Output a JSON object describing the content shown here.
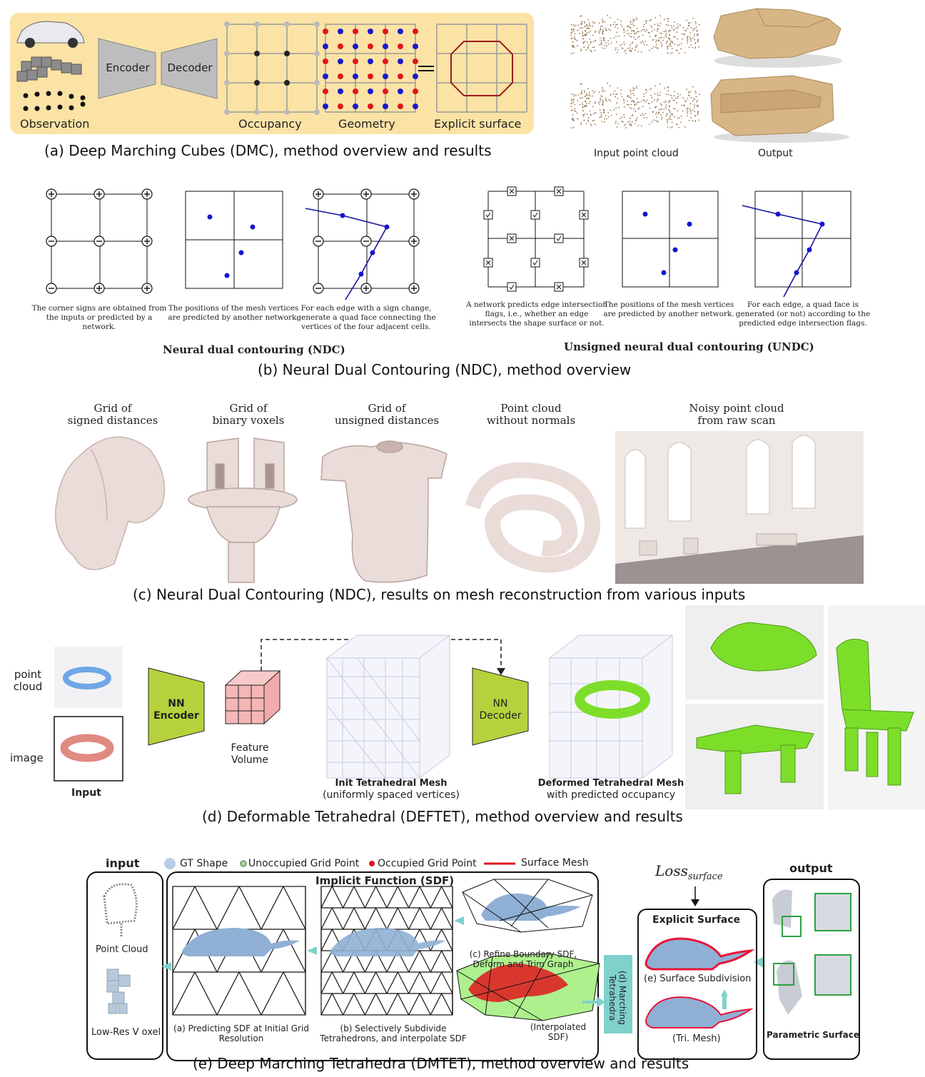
{
  "panel_a": {
    "caption": "(a) Deep Marching Cubes (DMC), method overview and results",
    "encoder": "Encoder",
    "decoder": "Decoder",
    "observation": "Observation",
    "occupancy": "Occupancy",
    "geometry": "Geometry",
    "explicit_surface": "Explicit surface",
    "input_point_cloud": "Input point cloud",
    "output": "Output",
    "colors": {
      "panel_bg": "#fbe3a6",
      "box": "#bdbdbd",
      "red": "#e0161d",
      "blue": "#1a1acc",
      "mesh": "#d8b585"
    }
  },
  "panel_b": {
    "caption": "(b) Neural Dual Contouring (NDC), method overview",
    "ndc_title": "Neural dual contouring (NDC)",
    "undc_title": "Unsigned neural dual contouring (UNDC)",
    "notes": [
      "The corner signs are obtained from the inputs or predicted by a network.",
      "The positions of the mesh vertices are predicted by another network.",
      "For each edge with a sign change, generate a quad face connecting the vertices of the four adjacent cells.",
      "A network predicts edge intersection flags, i.e., whether an edge intersects the shape surface or not.",
      "The positions of the mesh vertices are predicted by another network.",
      "For each edge, a quad face is generated (or not) according to the predicted edge intersection flags."
    ]
  },
  "panel_c": {
    "caption": "(c) Neural Dual Contouring (NDC), results on mesh reconstruction from various inputs",
    "labels": [
      {
        "l1": "Grid of",
        "l2": "signed distances"
      },
      {
        "l1": "Grid of",
        "l2": "binary voxels"
      },
      {
        "l1": "Grid of",
        "l2": "unsigned distances"
      },
      {
        "l1": "Point cloud",
        "l2": "without normals"
      },
      {
        "l1": "Noisy point cloud",
        "l2": "from raw scan"
      }
    ],
    "colors": {
      "mesh": "#eadcd8"
    }
  },
  "panel_d": {
    "caption": "(d) Deformable Tetrahedral (DEFTET), method overview and results",
    "point_cloud": "point cloud",
    "image": "image",
    "input": "Input",
    "nn_encoder": "NN Encoder",
    "nn_decoder": "NN Decoder",
    "feature_volume": "Feature Volume",
    "init_mesh": "Init Tetrahedral Mesh",
    "init_sub": "(uniformly spaced vertices)",
    "deformed_mesh": "Deformed Tetrahedral Mesh",
    "deformed_sub": "with predicted occupancy",
    "colors": {
      "nn_box": "#b5d23c",
      "feature": "#f6b6b6",
      "green": "#7dde2a"
    }
  },
  "panel_e": {
    "caption": "(e) Deep Marching Tetrahedra (DMTET), method overview and results",
    "input": "input",
    "output": "output",
    "legend": [
      "GT Shape",
      "Unoccupied Grid Point",
      "Occupied Grid Point",
      "Surface Mesh"
    ],
    "implicit_title": "Implicit Function (SDF)",
    "point_cloud": "Point Cloud",
    "low_res_voxel": "Low-Res V oxel",
    "step_a": "(a) Predicting SDF at Initial Grid Resolution",
    "step_b": "(b) Selectively Subdivide Tetrahedrons, and interpolate SDF",
    "step_c": "(c) Refine Boundary SDF, Deform and Trim Graph",
    "interp": "(Interpolated SDF)",
    "step_d": "(d) Marching Tetrahedra",
    "loss_base": "Loss",
    "loss_sub": "surface",
    "explicit_surface": "Explicit Surface",
    "step_e": "(e) Surface Subdivision",
    "tri_mesh": "(Tri. Mesh)",
    "parametric_surface": "Parametric Surface",
    "colors": {
      "shape": "#8fb0d4",
      "teal": "#7fd1cc",
      "surface": "#e8143a",
      "green_box": "#2ea043"
    }
  }
}
